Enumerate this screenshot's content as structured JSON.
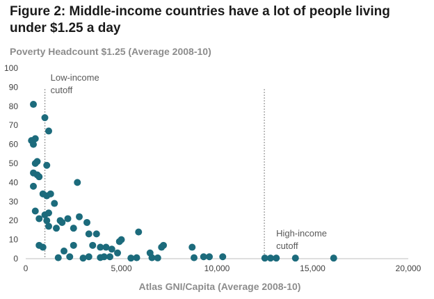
{
  "chart_data": {
    "type": "scatter",
    "title": "Figure 2: Middle-income countries have a lot of people living under $1.25 a day",
    "subtitle": "Poverty Headcount $1.25 (Average 2008-10)",
    "xlabel": "Atlas GNI/Capita (Average 2008-10)",
    "ylabel": "",
    "xlim": [
      0,
      20000
    ],
    "ylim": [
      0,
      100
    ],
    "xticks": [
      0,
      5000,
      10000,
      15000,
      20000
    ],
    "xtick_labels": [
      "0",
      "5,000",
      "10,000",
      "15,000",
      "20,000"
    ],
    "yticks": [
      0,
      10,
      20,
      30,
      40,
      50,
      60,
      70,
      80,
      90,
      100
    ],
    "ytick_labels": [
      "0",
      "10",
      "20",
      "30",
      "40",
      "50",
      "60",
      "70",
      "80",
      "90",
      "100"
    ],
    "grid": false,
    "marker_color": "#1c6b7c",
    "cutoffs": [
      {
        "label_line1": "Low-income",
        "label_line2": "cutoff",
        "x": 1005
      },
      {
        "label_line1": "High-income",
        "label_line2": "cutoff",
        "x": 12475
      }
    ],
    "points": [
      [
        400,
        81
      ],
      [
        1000,
        74
      ],
      [
        1200,
        67
      ],
      [
        500,
        63
      ],
      [
        300,
        62
      ],
      [
        400,
        60
      ],
      [
        600,
        51
      ],
      [
        500,
        50
      ],
      [
        1100,
        49
      ],
      [
        400,
        45
      ],
      [
        600,
        44
      ],
      [
        700,
        43
      ],
      [
        2700,
        40
      ],
      [
        400,
        38
      ],
      [
        900,
        34
      ],
      [
        1100,
        33
      ],
      [
        1300,
        34
      ],
      [
        1500,
        29
      ],
      [
        500,
        25
      ],
      [
        1000,
        23
      ],
      [
        1200,
        24
      ],
      [
        700,
        21
      ],
      [
        2800,
        22
      ],
      [
        1100,
        20
      ],
      [
        1800,
        20
      ],
      [
        1900,
        19
      ],
      [
        2200,
        21
      ],
      [
        3200,
        19
      ],
      [
        1200,
        17
      ],
      [
        1600,
        16
      ],
      [
        2500,
        16
      ],
      [
        5900,
        14
      ],
      [
        3300,
        13
      ],
      [
        3700,
        13
      ],
      [
        5000,
        10
      ],
      [
        4900,
        9
      ],
      [
        3500,
        7
      ],
      [
        700,
        7
      ],
      [
        900,
        6
      ],
      [
        2500,
        7
      ],
      [
        2000,
        4
      ],
      [
        3900,
        6
      ],
      [
        4200,
        6
      ],
      [
        4500,
        5
      ],
      [
        4800,
        3
      ],
      [
        7100,
        6
      ],
      [
        7200,
        7
      ],
      [
        8700,
        6
      ],
      [
        3300,
        1
      ],
      [
        1700,
        0.5
      ],
      [
        3000,
        0.3
      ],
      [
        3900,
        0.6
      ],
      [
        4100,
        1
      ],
      [
        4400,
        1
      ],
      [
        5500,
        0.3
      ],
      [
        5800,
        0.5
      ],
      [
        6500,
        3
      ],
      [
        6600,
        0.5
      ],
      [
        6900,
        0.4
      ],
      [
        8800,
        0.5
      ],
      [
        9300,
        1
      ],
      [
        9600,
        1
      ],
      [
        10300,
        1
      ],
      [
        12500,
        0.3
      ],
      [
        12800,
        0.3
      ],
      [
        13100,
        0.3
      ],
      [
        14100,
        0.3
      ],
      [
        16100,
        0.3
      ],
      [
        2300,
        1
      ]
    ]
  }
}
